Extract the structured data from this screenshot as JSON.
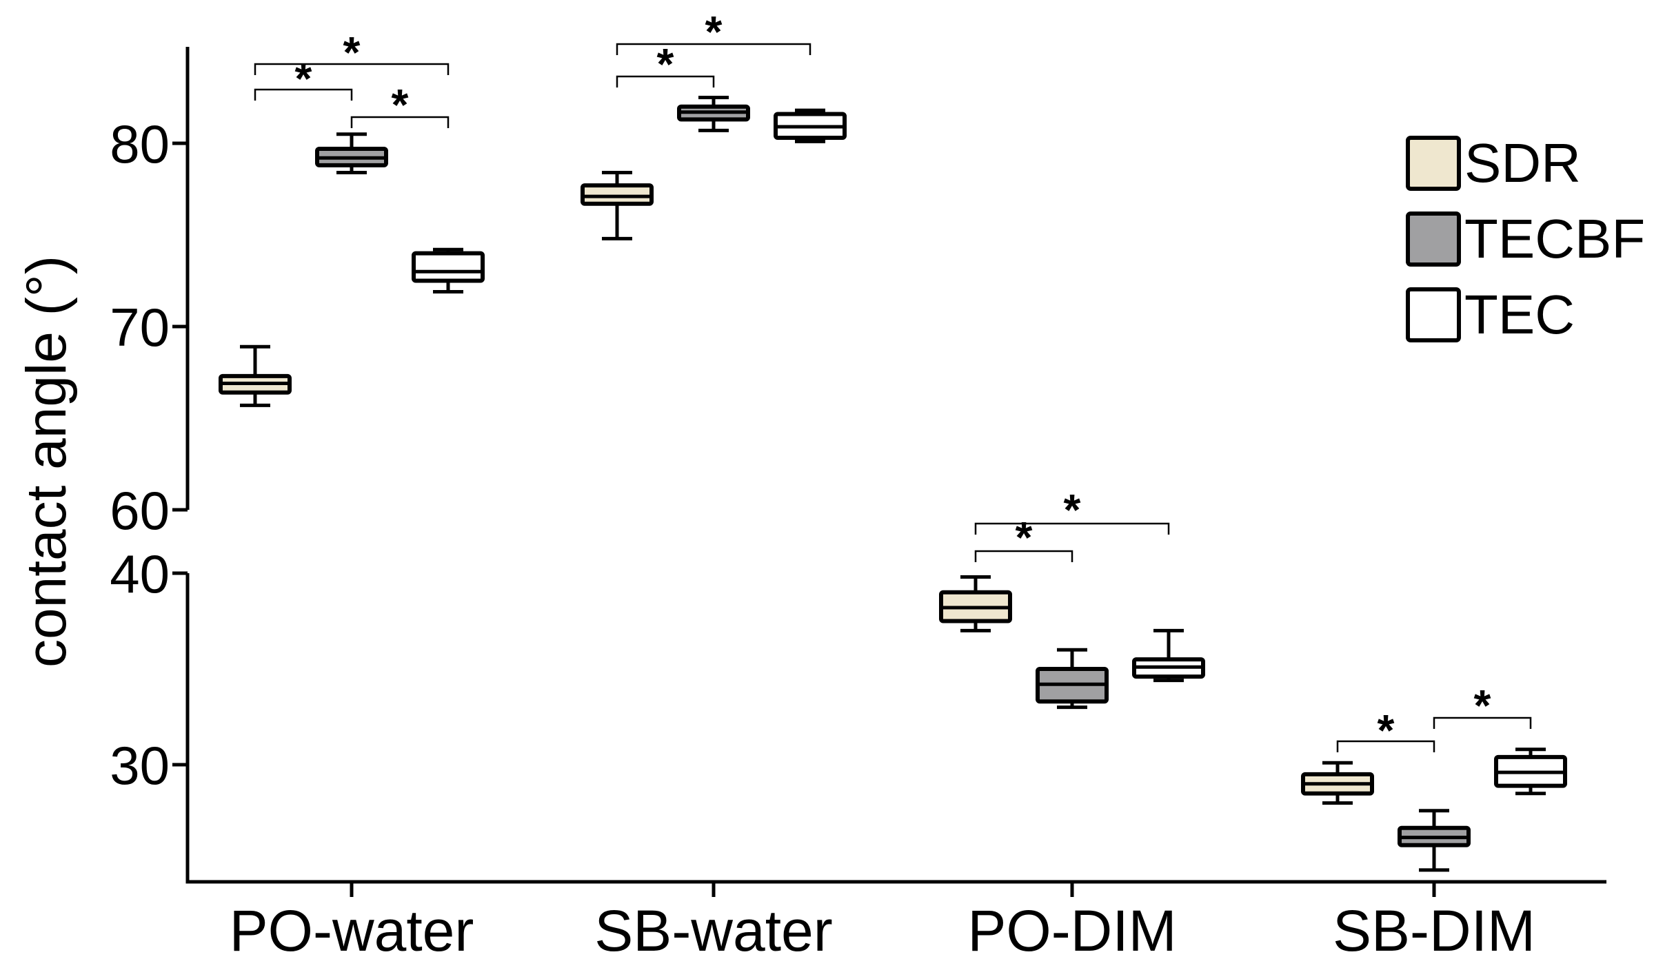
{
  "chart_data": {
    "type": "box",
    "ylabel": "contact angle (°)",
    "axis_break": true,
    "ylim_upper": [
      60,
      85
    ],
    "ylim_lower": [
      24,
      40
    ],
    "yticks_upper": [
      "80",
      "70",
      "60"
    ],
    "yticks_lower": [
      "40",
      "30"
    ],
    "categories": [
      "PO-water",
      "SB-water",
      "PO-DIM",
      "SB-DIM"
    ],
    "legend_position": "top-right",
    "colors": {
      "SDR": "#efe7cf",
      "TECBF": "#a0a0a2",
      "TEC": "#ffffff"
    },
    "series": [
      {
        "name": "SDR",
        "boxes": [
          {
            "min": 65.7,
            "q1": 66.4,
            "median": 66.9,
            "q3": 67.3,
            "max": 68.9
          },
          {
            "min": 74.8,
            "q1": 76.7,
            "median": 77.1,
            "q3": 77.7,
            "max": 78.4
          },
          {
            "min": 37.0,
            "q1": 37.5,
            "median": 38.2,
            "q3": 39.0,
            "max": 39.8
          },
          {
            "min": 28.0,
            "q1": 28.5,
            "median": 29.0,
            "q3": 29.5,
            "max": 30.1
          }
        ]
      },
      {
        "name": "TECBF",
        "boxes": [
          {
            "min": 78.4,
            "q1": 78.8,
            "median": 79.2,
            "q3": 79.7,
            "max": 80.5
          },
          {
            "min": 80.7,
            "q1": 81.3,
            "median": 81.7,
            "q3": 82.0,
            "max": 82.5
          },
          {
            "min": 33.0,
            "q1": 33.3,
            "median": 34.2,
            "q3": 35.0,
            "max": 36.0
          },
          {
            "min": 24.5,
            "q1": 25.8,
            "median": 26.2,
            "q3": 26.7,
            "max": 27.6
          }
        ]
      },
      {
        "name": "TEC",
        "boxes": [
          {
            "min": 71.9,
            "q1": 72.5,
            "median": 73.0,
            "q3": 74.0,
            "max": 74.2
          },
          {
            "min": 80.1,
            "q1": 80.3,
            "median": 80.9,
            "q3": 81.6,
            "max": 81.8
          },
          {
            "min": 34.4,
            "q1": 34.6,
            "median": 35.1,
            "q3": 35.5,
            "max": 37.0
          },
          {
            "min": 28.5,
            "q1": 28.9,
            "median": 29.6,
            "q3": 30.4,
            "max": 30.8
          }
        ]
      }
    ],
    "significance": [
      {
        "group": 0,
        "from": "SDR",
        "to": "TEC",
        "label": "*"
      },
      {
        "group": 0,
        "from": "SDR",
        "to": "TECBF",
        "label": "*"
      },
      {
        "group": 0,
        "from": "TECBF",
        "to": "TEC",
        "label": "*"
      },
      {
        "group": 1,
        "from": "SDR",
        "to": "TEC",
        "label": "*"
      },
      {
        "group": 1,
        "from": "SDR",
        "to": "TECBF",
        "label": "*"
      },
      {
        "group": 2,
        "from": "SDR",
        "to": "TEC",
        "label": "*"
      },
      {
        "group": 2,
        "from": "SDR",
        "to": "TECBF",
        "label": "*"
      },
      {
        "group": 3,
        "from": "SDR",
        "to": "TECBF",
        "label": "*"
      },
      {
        "group": 3,
        "from": "TECBF",
        "to": "TEC",
        "label": "*"
      }
    ]
  }
}
